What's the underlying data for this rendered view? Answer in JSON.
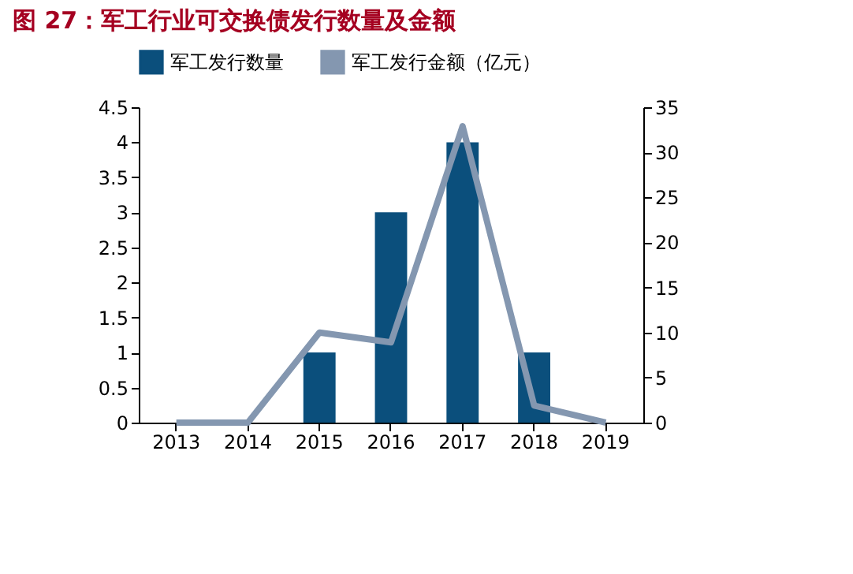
{
  "chart_data": {
    "type": "bar",
    "title": "图 27：军工行业可交换债发行数量及金额",
    "categories": [
      "2013",
      "2014",
      "2015",
      "2016",
      "2017",
      "2018",
      "2019"
    ],
    "series": [
      {
        "name": "军工发行数量",
        "color": "#0b4f7c",
        "values": [
          0,
          0,
          1,
          3,
          4,
          1,
          0
        ]
      },
      {
        "name": "军工发行金额（亿元）",
        "type": "line",
        "axis": "y2",
        "color": "#8497b0",
        "values": [
          0,
          0,
          10,
          8.9,
          32.9,
          1.9,
          0
        ]
      }
    ],
    "ylim": [
      0,
      4.5
    ],
    "yticks": [
      0,
      0.5,
      1,
      1.5,
      2,
      2.5,
      3,
      3.5,
      4,
      4.5
    ],
    "y2lim": [
      0,
      35
    ],
    "y2ticks": [
      0,
      5,
      10,
      15,
      20,
      25,
      30,
      35
    ],
    "legend": "top",
    "grid": false,
    "marker": "none",
    "line_style": "solid"
  }
}
